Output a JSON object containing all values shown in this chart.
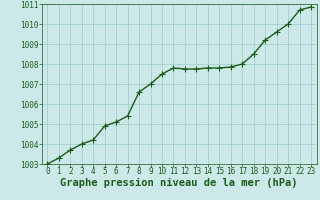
{
  "x": [
    0,
    1,
    2,
    3,
    4,
    5,
    6,
    7,
    8,
    9,
    10,
    11,
    12,
    13,
    14,
    15,
    16,
    17,
    18,
    19,
    20,
    21,
    22,
    23
  ],
  "y": [
    1003.0,
    1003.3,
    1003.7,
    1004.0,
    1004.2,
    1004.9,
    1005.1,
    1005.4,
    1006.6,
    1007.0,
    1007.5,
    1007.8,
    1007.75,
    1007.75,
    1007.8,
    1007.8,
    1007.85,
    1008.0,
    1008.5,
    1009.2,
    1009.6,
    1010.0,
    1010.7,
    1010.85
  ],
  "ylim": [
    1003,
    1011
  ],
  "xlim": [
    -0.5,
    23.5
  ],
  "yticks": [
    1003,
    1004,
    1005,
    1006,
    1007,
    1008,
    1009,
    1010,
    1011
  ],
  "xticks": [
    0,
    1,
    2,
    3,
    4,
    5,
    6,
    7,
    8,
    9,
    10,
    11,
    12,
    13,
    14,
    15,
    16,
    17,
    18,
    19,
    20,
    21,
    22,
    23
  ],
  "xlabel": "Graphe pression niveau de la mer (hPa)",
  "line_color": "#1a5c1a",
  "marker_color": "#1a5c1a",
  "bg_color": "#cce8e8",
  "grid_color": "#99cccc",
  "tick_color": "#1a5c1a",
  "label_color": "#1a5c1a",
  "tick_fontsize": 5.5,
  "xlabel_fontsize": 7.5,
  "marker_size": 2.0,
  "line_width": 1.0
}
